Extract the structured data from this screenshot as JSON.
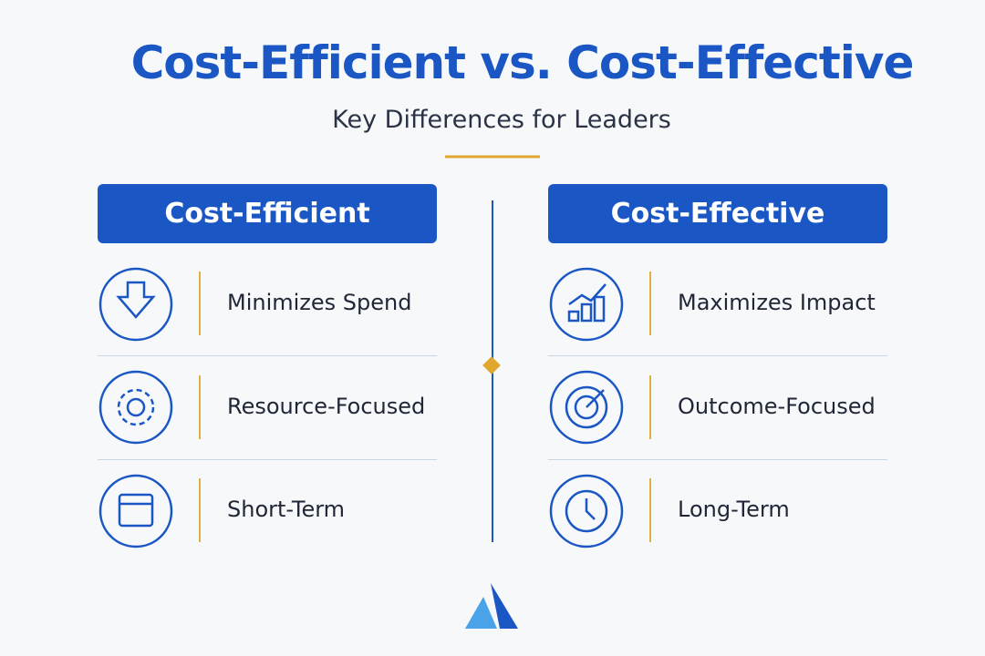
{
  "header": {
    "title": "Cost-Efficient vs. Cost-Effective",
    "subtitle": "Key Differences for Leaders"
  },
  "columns": [
    {
      "heading": "Cost-Efficient",
      "items": [
        "Minimizes Spend",
        "Resource-Focused",
        "Short-Term"
      ]
    },
    {
      "heading": "Cost-Effective",
      "items": [
        "Maximizes Impact",
        "Outcome-Focused",
        "Long-Term"
      ]
    }
  ]
}
